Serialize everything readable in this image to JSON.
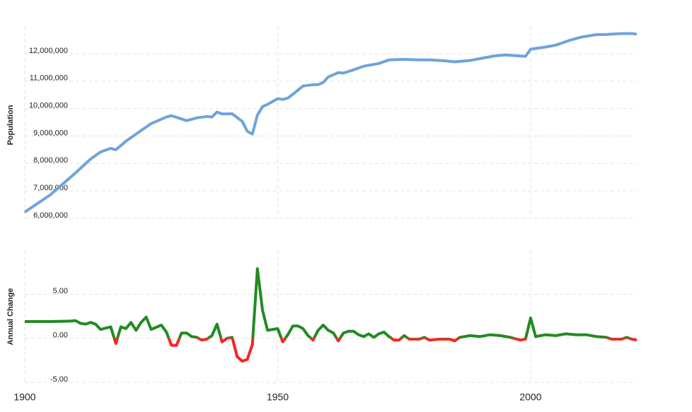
{
  "chart_data": [
    {
      "type": "line",
      "y_label": "Population",
      "x": [
        1900,
        1905,
        1910,
        1913,
        1915,
        1917,
        1918,
        1920,
        1923,
        1925,
        1928,
        1929,
        1932,
        1934,
        1936,
        1937,
        1938,
        1939,
        1941,
        1943,
        1944,
        1945,
        1946,
        1947,
        1948,
        1950,
        1951,
        1952,
        1953,
        1955,
        1957,
        1958,
        1959,
        1960,
        1962,
        1963,
        1965,
        1967,
        1970,
        1972,
        1975,
        1978,
        1980,
        1983,
        1985,
        1988,
        1990,
        1993,
        1995,
        1999,
        2000,
        2003,
        2005,
        2008,
        2010,
        2013,
        2015,
        2018,
        2020,
        2021
      ],
      "series": [
        {
          "name": "Population",
          "color": "#6fa3da",
          "values": [
            6230000,
            6850000,
            7650000,
            8160000,
            8420000,
            8550000,
            8500000,
            8810000,
            9200000,
            9450000,
            9690000,
            9740000,
            9560000,
            9660000,
            9710000,
            9690000,
            9870000,
            9800000,
            9810000,
            9530000,
            9170000,
            9070000,
            9760000,
            10070000,
            10150000,
            10360000,
            10330000,
            10380000,
            10520000,
            10820000,
            10870000,
            10870000,
            10950000,
            11150000,
            11310000,
            11290000,
            11410000,
            11540000,
            11640000,
            11770000,
            11790000,
            11770000,
            11770000,
            11740000,
            11700000,
            11750000,
            11820000,
            11920000,
            11950000,
            11900000,
            12160000,
            12240000,
            12310000,
            12500000,
            12600000,
            12690000,
            12700000,
            12730000,
            12730000,
            12710000
          ]
        }
      ],
      "xlim": [
        1900,
        2021
      ],
      "ylim": [
        6000000,
        13000000
      ],
      "yticks": [
        {
          "value": 6000000,
          "label": "6,000,000"
        },
        {
          "value": 7000000,
          "label": "7,000,000"
        },
        {
          "value": 8000000,
          "label": "8,000,000"
        },
        {
          "value": 9000000,
          "label": "9,000,000"
        },
        {
          "value": 10000000,
          "label": "10,000,000"
        },
        {
          "value": 11000000,
          "label": "11,000,000"
        },
        {
          "value": 12000000,
          "label": "12,000,000"
        }
      ],
      "grid": true
    },
    {
      "type": "signed-line",
      "y_label": "Annual Change",
      "x": [
        1900,
        1905,
        1909,
        1910,
        1911,
        1912,
        1913,
        1914,
        1915,
        1917,
        1918,
        1919,
        1920,
        1921,
        1922,
        1923,
        1924,
        1925,
        1927,
        1928,
        1929,
        1930,
        1931,
        1932,
        1933,
        1934,
        1935,
        1936,
        1937,
        1938,
        1939,
        1940,
        1941,
        1942,
        1943,
        1944,
        1945,
        1946,
        1947,
        1948,
        1950,
        1951,
        1952,
        1953,
        1954,
        1955,
        1956,
        1957,
        1958,
        1959,
        1960,
        1961,
        1962,
        1963,
        1964,
        1965,
        1966,
        1967,
        1968,
        1969,
        1970,
        1971,
        1972,
        1973,
        1974,
        1975,
        1976,
        1977,
        1978,
        1979,
        1980,
        1982,
        1984,
        1985,
        1986,
        1987,
        1988,
        1990,
        1992,
        1994,
        1996,
        1998,
        1999,
        2000,
        2001,
        2003,
        2005,
        2007,
        2009,
        2011,
        2013,
        2015,
        2016,
        2018,
        2019,
        2020,
        2021
      ],
      "values": [
        1.9,
        1.9,
        1.95,
        2.0,
        1.7,
        1.6,
        1.8,
        1.6,
        1.0,
        1.3,
        -0.6,
        1.3,
        1.1,
        1.8,
        0.9,
        1.8,
        2.4,
        1.0,
        1.5,
        0.7,
        -0.8,
        -0.8,
        0.6,
        0.6,
        0.2,
        0.1,
        -0.2,
        -0.1,
        0.3,
        1.6,
        -0.4,
        0.0,
        0.1,
        -2.1,
        -2.6,
        -2.4,
        -0.7,
        7.9,
        3.2,
        0.9,
        1.1,
        -0.4,
        0.4,
        1.4,
        1.4,
        1.1,
        0.3,
        -0.2,
        0.9,
        1.5,
        0.9,
        0.6,
        -0.3,
        0.6,
        0.8,
        0.8,
        0.4,
        0.2,
        0.5,
        0.1,
        0.5,
        0.7,
        0.2,
        -0.2,
        -0.2,
        0.3,
        -0.1,
        -0.1,
        -0.1,
        0.1,
        -0.2,
        -0.1,
        -0.1,
        -0.3,
        0.1,
        0.2,
        0.3,
        0.2,
        0.4,
        0.3,
        0.1,
        -0.2,
        -0.1,
        2.3,
        0.2,
        0.4,
        0.3,
        0.5,
        0.4,
        0.4,
        0.2,
        0.1,
        -0.1,
        -0.1,
        0.1,
        -0.1,
        -0.2
      ],
      "positive_color": "#228b22",
      "negative_color": "#ff2020",
      "xlim": [
        1900,
        2021
      ],
      "xticks": [
        1900,
        1950,
        2000
      ],
      "ylim": [
        -5,
        10
      ],
      "yticks": [
        {
          "value": -5,
          "label": "-5.00"
        },
        {
          "value": 0,
          "label": "0.00"
        },
        {
          "value": 5,
          "label": "5.00"
        }
      ],
      "grid": true
    }
  ]
}
